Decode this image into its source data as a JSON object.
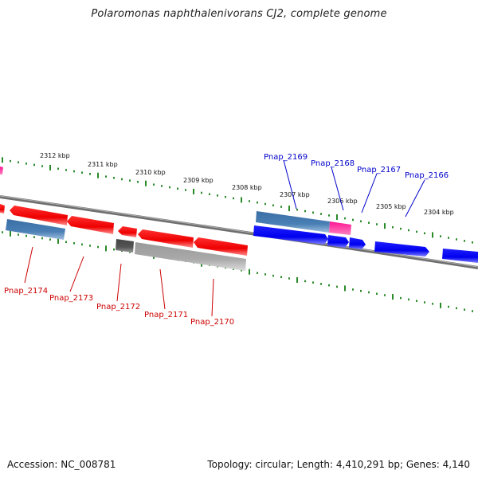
{
  "title": "Polaromonas naphthalenivorans CJ2, complete genome",
  "footer": {
    "accession": "Accession: NC_008781",
    "summary": "Topology: circular; Length: 4,410,291 bp; Genes: 4,140"
  },
  "colors": {
    "forward_gene": "#0000ee",
    "reverse_gene": "#ee0000",
    "pseudo_gene": "#aaaaaa",
    "dark_gene": "#555555",
    "rna_gene": "#4a7fb5",
    "pink_gene": "#ff1493",
    "tick": "#2a8a2a",
    "backbone": "#808080",
    "label_forward": "#0000cc",
    "label_reverse": "#cc0000"
  },
  "kbp_labels": [
    "2312 kbp",
    "2311 kbp",
    "2310 kbp",
    "2309 kbp",
    "2308 kbp",
    "2307 kbp",
    "2306 kbp",
    "2305 kbp",
    "2304 kbp"
  ],
  "forward_genes": [
    "Pnap_2169",
    "Pnap_2168",
    "Pnap_2167",
    "Pnap_2166"
  ],
  "reverse_genes": [
    "Pnap_2174",
    "Pnap_2173",
    "Pnap_2172",
    "Pnap_2171",
    "Pnap_2170"
  ]
}
